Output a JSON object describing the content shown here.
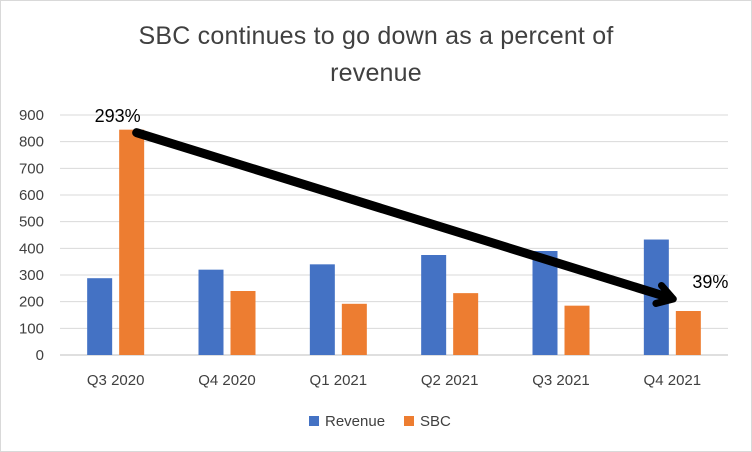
{
  "chart_data": {
    "type": "bar",
    "title_line1": "SBC continues to go down as a percent of",
    "title_line2": "revenue",
    "categories": [
      "Q3 2020",
      "Q4 2020",
      "Q1 2021",
      "Q2 2021",
      "Q3 2021",
      "Q4 2021"
    ],
    "series": [
      {
        "name": "Revenue",
        "color": "#4472c4",
        "values": [
          288,
          320,
          340,
          375,
          390,
          433
        ]
      },
      {
        "name": "SBC",
        "color": "#ed7d31",
        "values": [
          845,
          240,
          192,
          232,
          185,
          165
        ]
      }
    ],
    "ylim": [
      0,
      900
    ],
    "yticks": [
      "0",
      "100",
      "200",
      "300",
      "400",
      "500",
      "600",
      "700",
      "800",
      "900"
    ],
    "grid": true,
    "legend_position": "bottom",
    "annotations": [
      {
        "text": "293%",
        "category": "Q3 2020"
      },
      {
        "text": "39%",
        "category": "Q4 2021"
      }
    ],
    "trend_arrow": {
      "from": {
        "category": "Q3 2020",
        "value": 845
      },
      "to": {
        "category": "Q4 2021",
        "value": 165
      },
      "color": "#000000"
    }
  }
}
